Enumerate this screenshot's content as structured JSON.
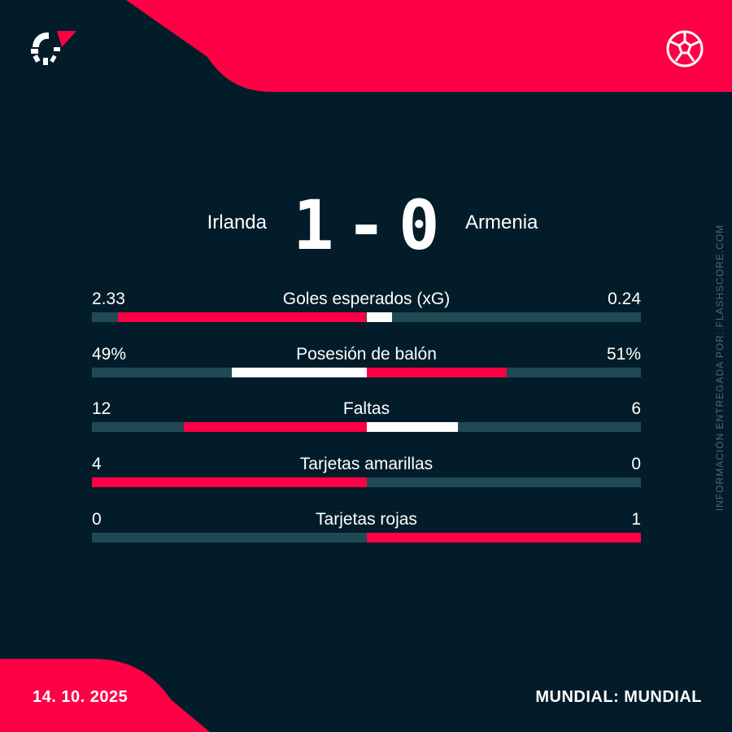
{
  "colors": {
    "background": "#021d29",
    "accent": "#ff0046",
    "track": "#1f4a55",
    "secondary": "#ffffff"
  },
  "header": {
    "logo_icon": "flashscore-logo-icon",
    "sport_icon": "soccer-ball-icon"
  },
  "match": {
    "home_team": "Irlanda",
    "away_team": "Armenia",
    "home_score": "1",
    "separator": "-",
    "away_score": "0"
  },
  "stats": [
    {
      "name": "Goles esperados (xG)",
      "home": "2.33",
      "away": "0.24"
    },
    {
      "name": "Posesión de balón",
      "home": "49%",
      "away": "51%"
    },
    {
      "name": "Faltas",
      "home": "12",
      "away": "6"
    },
    {
      "name": "Tarjetas amarillas",
      "home": "4",
      "away": "0"
    },
    {
      "name": "Tarjetas rojas",
      "home": "0",
      "away": "1"
    }
  ],
  "side_text": "INFORMACIÓN ENTREGADA POR: FLASHSCORE.COM",
  "footer": {
    "date": "14. 10. 2025",
    "competition": "MUNDIAL: MUNDIAL"
  }
}
